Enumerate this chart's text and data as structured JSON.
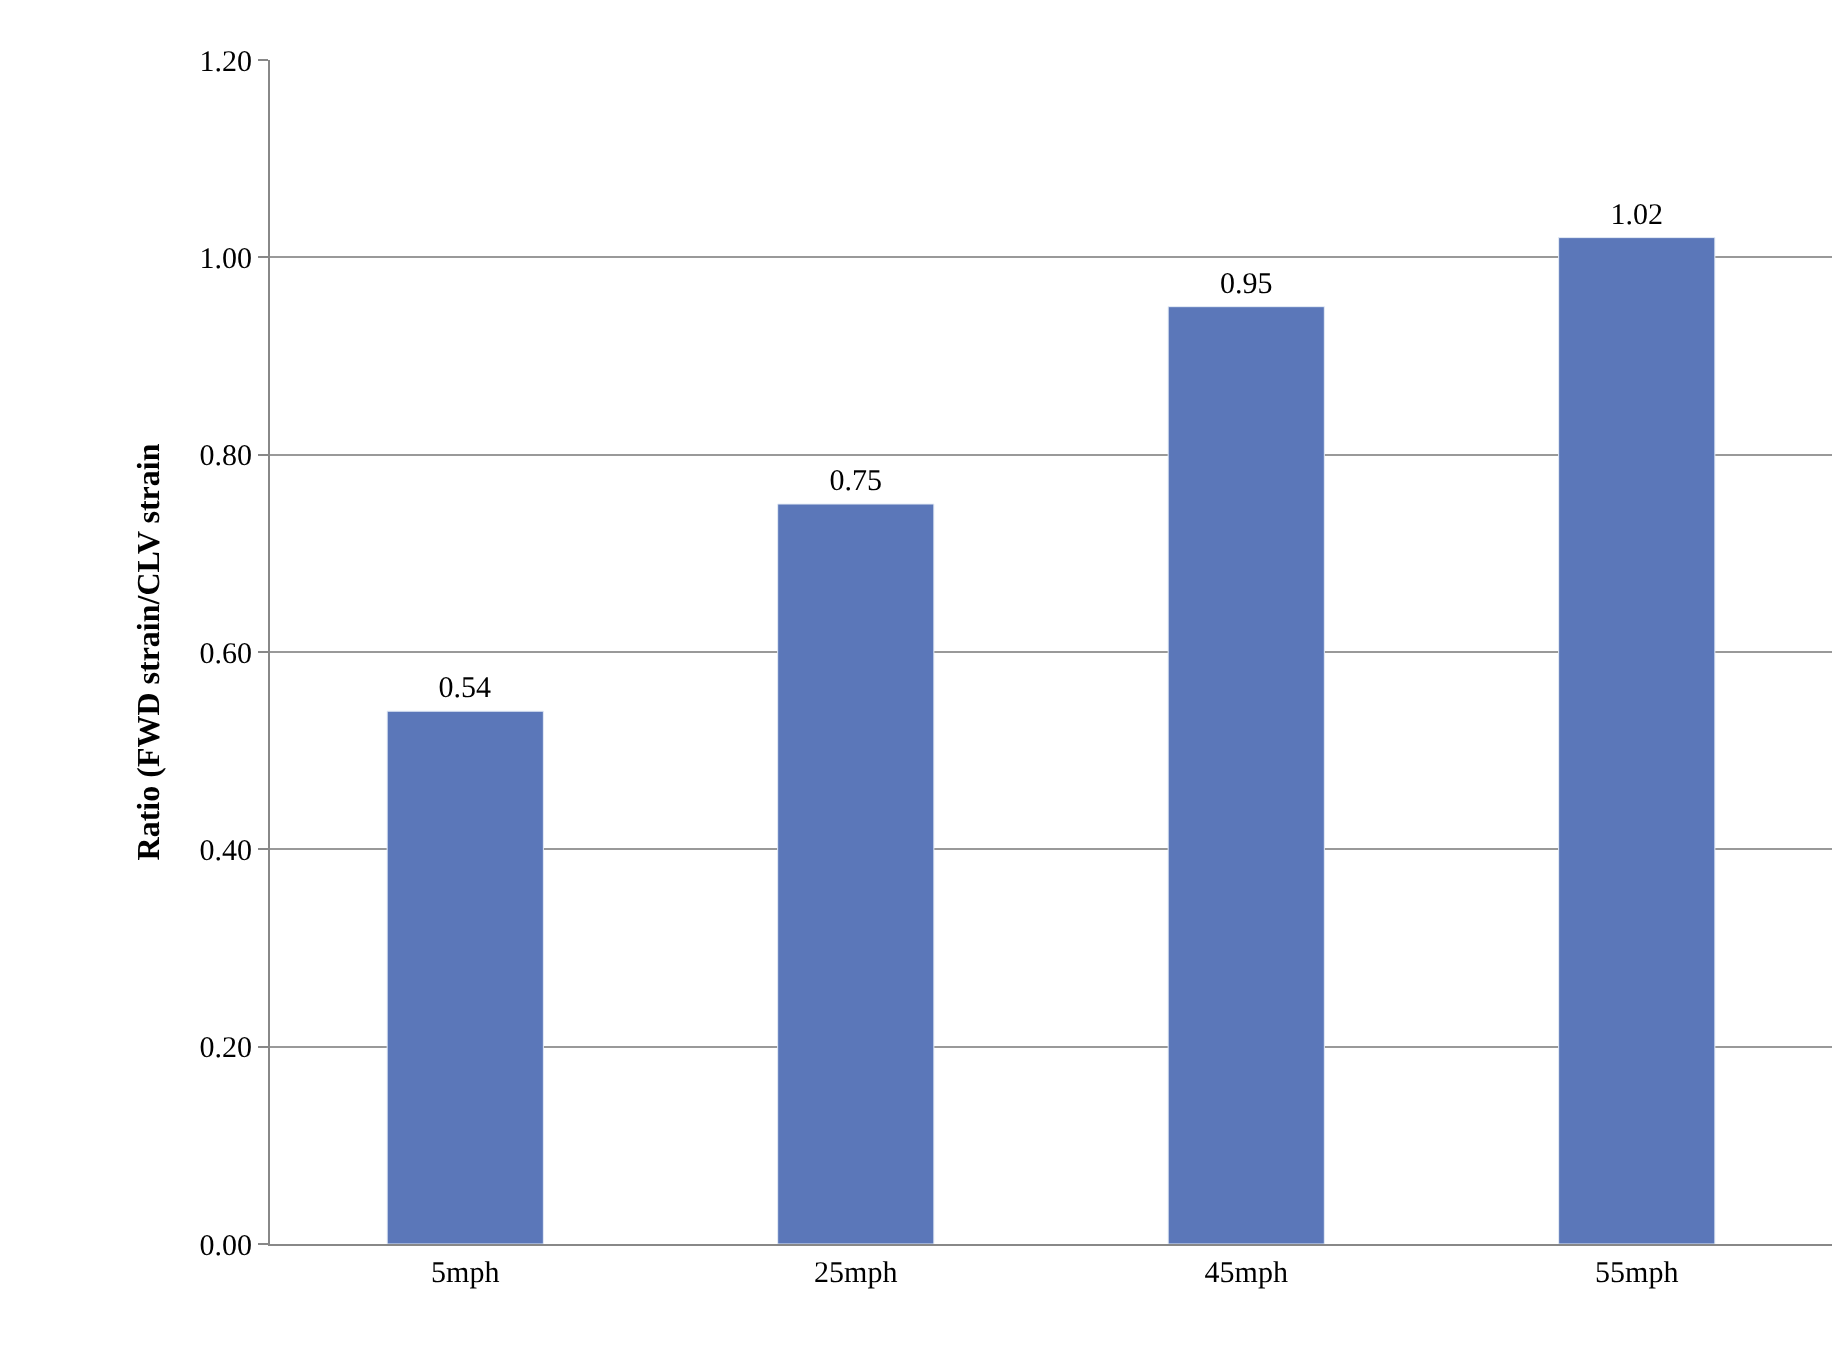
{
  "chart_data": {
    "type": "bar",
    "ylabel": "Ratio (FWD strain/CLV strain",
    "categories": [
      "5mph",
      "25mph",
      "45mph",
      "55mph"
    ],
    "values": [
      0.54,
      0.75,
      0.95,
      1.02
    ],
    "color": "#5b77b9",
    "ylim": [
      0,
      1.2
    ],
    "yticks": [
      {
        "value": 0,
        "label": "0.00"
      },
      {
        "value": 0.2,
        "label": "0.20"
      },
      {
        "value": 0.4,
        "label": "0.40"
      },
      {
        "value": 0.6,
        "label": "0.60"
      },
      {
        "value": 0.8,
        "label": "0.80"
      },
      {
        "value": 1.0,
        "label": "1.00"
      },
      {
        "value": 1.2,
        "label": "1.20"
      }
    ],
    "grid": "y",
    "data_labels": true
  }
}
